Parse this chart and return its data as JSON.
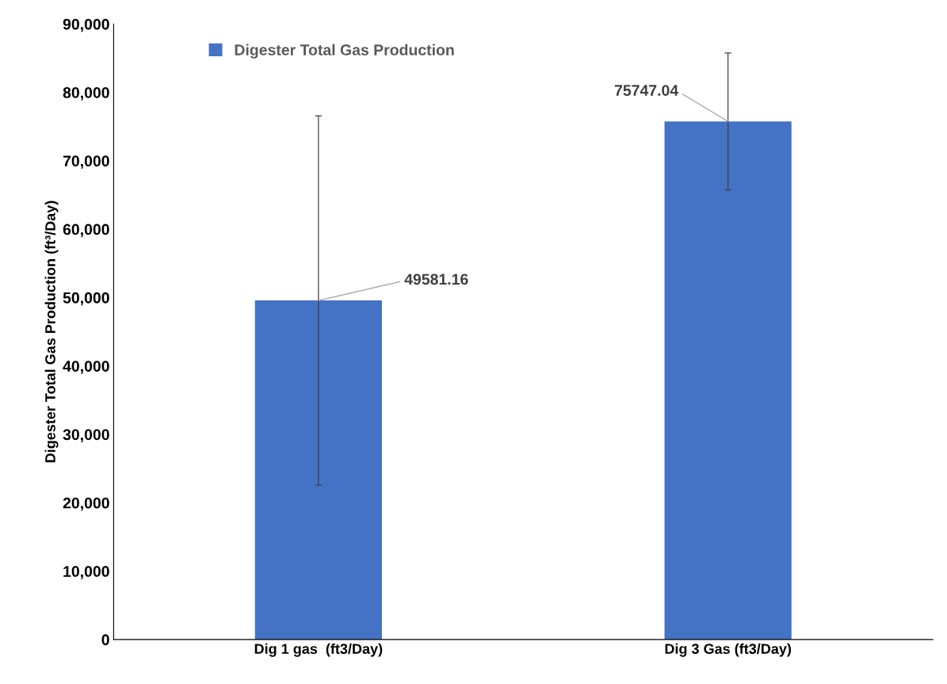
{
  "chart_data": {
    "type": "bar",
    "ylabel": "Digester Total Gas Production (ft³/Day)",
    "categories": [
      "Dig 1 gas  (ft3/Day)",
      "Dig 3 Gas (ft3/Day)"
    ],
    "series": [
      {
        "name": "Digester Total Gas Production",
        "color": "#4472c4",
        "values": [
          49581.16,
          75747.04
        ],
        "errors": [
          27000,
          10000
        ]
      }
    ],
    "data_labels": true,
    "ylim": [
      0,
      90000
    ],
    "yticks": [
      {
        "value": 0,
        "label": "0"
      },
      {
        "value": 10000,
        "label": "10,000"
      },
      {
        "value": 20000,
        "label": "20,000"
      },
      {
        "value": 30000,
        "label": "30,000"
      },
      {
        "value": 40000,
        "label": "40,000"
      },
      {
        "value": 50000,
        "label": "50,000"
      },
      {
        "value": 60000,
        "label": "60,000"
      },
      {
        "value": 70000,
        "label": "70,000"
      },
      {
        "value": 80000,
        "label": "80,000"
      },
      {
        "value": 90000,
        "label": "90,000"
      }
    ],
    "grid": false,
    "legend": "top left"
  }
}
